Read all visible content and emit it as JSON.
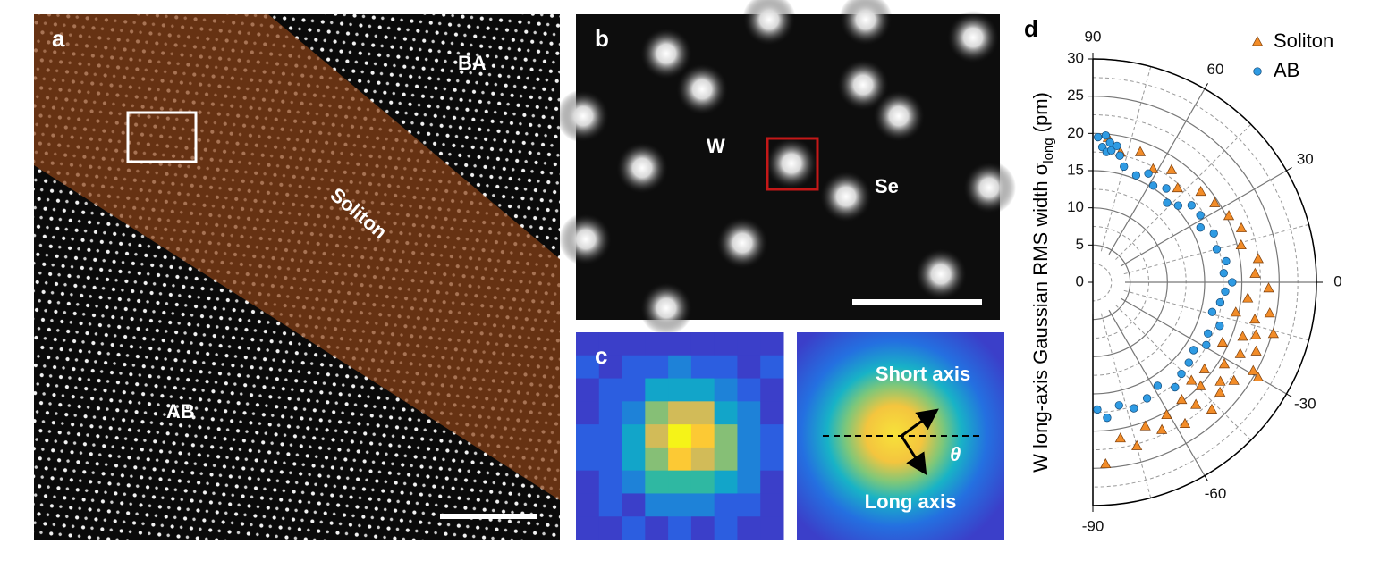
{
  "panel_a": {
    "label": "a",
    "regions": [
      "BA",
      "Soliton",
      "AB"
    ]
  },
  "panel_b": {
    "label": "b",
    "atoms": [
      "W",
      "Se"
    ]
  },
  "panel_c": {
    "label": "c",
    "short_axis": "Short axis",
    "long_axis": "Long axis",
    "angle": "θ"
  },
  "chart_data": {
    "type": "polar_scatter",
    "label": "d",
    "ylabel": "W long-axis Gaussian RMS width σ",
    "ylabel_sub": "long",
    "ylabel_unit": "(pm)",
    "thetalim": [
      -90,
      90
    ],
    "thetaticks": [
      90,
      60,
      30,
      0,
      -30,
      -60,
      -90
    ],
    "rlim": [
      0,
      30
    ],
    "rticks": [
      0,
      5,
      10,
      15,
      20,
      25,
      30
    ],
    "grid": true,
    "legend": "upper right",
    "series": [
      {
        "name": "Soliton",
        "color": "#f28c28",
        "marker": "triangle",
        "theta": [
          84,
          78,
          70,
          62,
          55,
          48,
          40,
          33,
          26,
          20,
          14,
          8,
          3,
          -2,
          -6,
          -10,
          -13,
          -16,
          -20,
          -23,
          -26,
          -29,
          -32,
          -35,
          -38,
          -41,
          -44,
          -47,
          -50,
          -53,
          -57,
          -61,
          -65,
          -70,
          -75,
          -80,
          -86,
          -12,
          -25,
          -38,
          -18,
          -45,
          -30
        ],
        "r": [
          19.5,
          17.8,
          18.6,
          17.2,
          18.4,
          17.0,
          18.9,
          19.5,
          20.3,
          21.2,
          20.5,
          22.4,
          21.8,
          23.6,
          20.9,
          24.1,
          22.3,
          25.2,
          21.4,
          23.8,
          22.0,
          24.6,
          20.8,
          23.1,
          21.7,
          22.6,
          20.1,
          23.4,
          21.5,
          19.8,
          22.7,
          20.4,
          21.9,
          20.6,
          22.8,
          21.3,
          24.5,
          19.6,
          19.2,
          19.0,
          23.0,
          18.7,
          25.6
        ]
      },
      {
        "name": "AB",
        "color": "#2f9be3",
        "marker": "circle",
        "theta": [
          88,
          86,
          85,
          84,
          83,
          82,
          80,
          78,
          75,
          68,
          63,
          58,
          52,
          47,
          42,
          38,
          32,
          27,
          22,
          15,
          9,
          4,
          0,
          -4,
          -9,
          -14,
          -19,
          -24,
          -29,
          -34,
          -40,
          -46,
          -52,
          -58,
          -65,
          -72,
          -78,
          -84,
          -88
        ],
        "r": [
          19.5,
          18.2,
          19.8,
          17.6,
          18.9,
          17.9,
          18.6,
          17.4,
          16.1,
          15.5,
          16.4,
          15.3,
          16.0,
          14.6,
          15.4,
          16.8,
          17.0,
          16.2,
          17.5,
          17.2,
          18.1,
          17.6,
          18.7,
          17.8,
          17.3,
          16.5,
          18.0,
          16.9,
          17.4,
          16.3,
          16.8,
          17.1,
          17.9,
          16.4,
          17.2,
          17.8,
          16.9,
          18.3,
          17.1
        ]
      }
    ]
  }
}
